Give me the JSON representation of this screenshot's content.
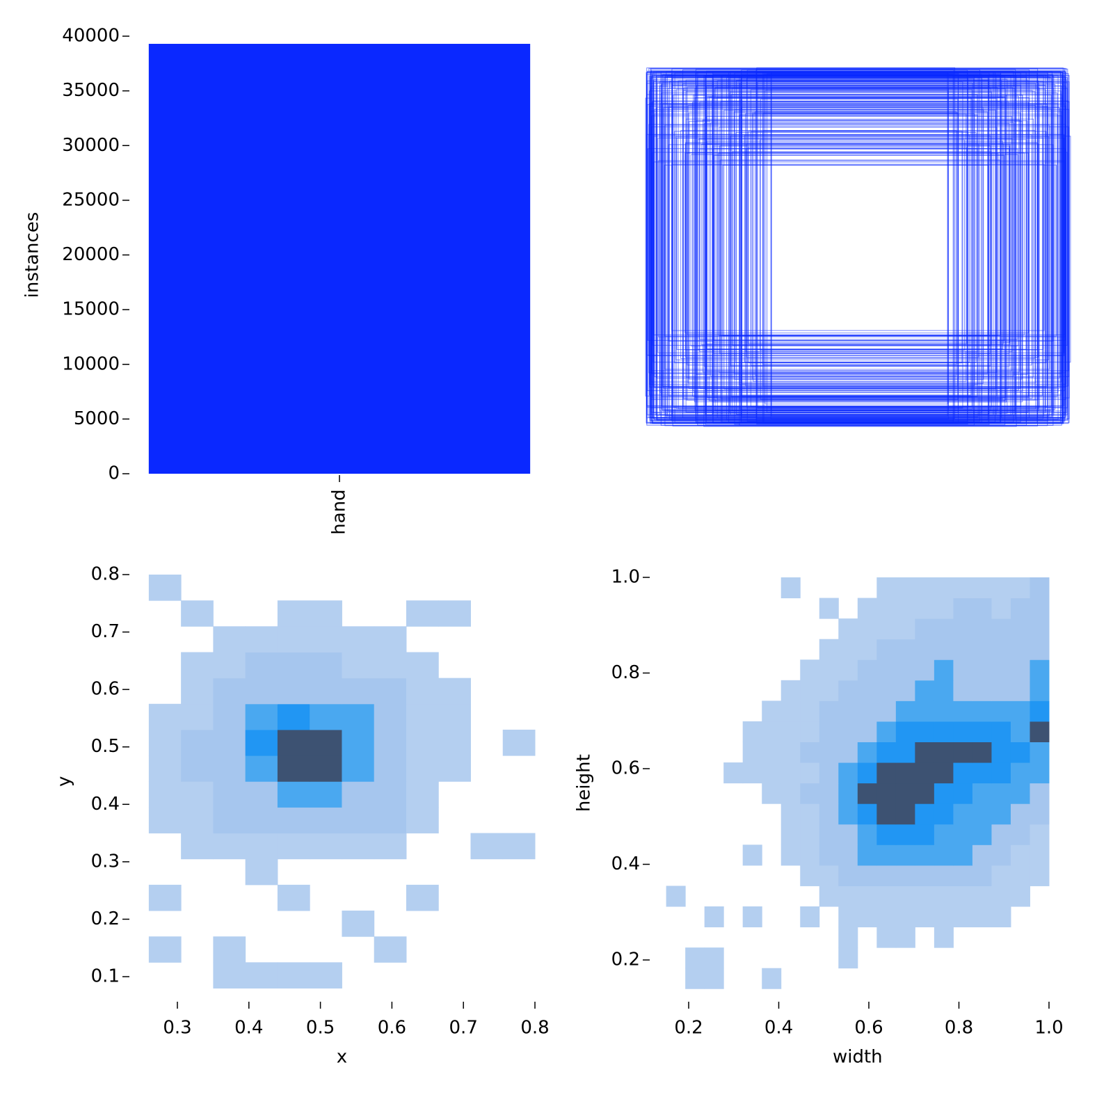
{
  "chart_data": [
    {
      "type": "bar",
      "ylabel": "instances",
      "categories": [
        "hand"
      ],
      "values": [
        39300
      ],
      "color": "#0a28ff",
      "ylim": [
        0,
        40000
      ],
      "yticks": [
        0,
        5000,
        10000,
        15000,
        20000,
        25000,
        30000,
        35000,
        40000
      ]
    },
    {
      "type": "hist2d",
      "xlabel": "x",
      "ylabel": "y",
      "xlim": [
        0.26,
        0.8
      ],
      "ylim": [
        0.08,
        0.8
      ],
      "xticks": [
        0.3,
        0.4,
        0.5,
        0.6,
        0.7,
        0.8
      ],
      "yticks": [
        0.1,
        0.2,
        0.3,
        0.4,
        0.5,
        0.6,
        0.7,
        0.8
      ],
      "colors": [
        "#b4cff0",
        "#a6c6ee",
        "#4aa8f0",
        "#2196f3",
        "#3d5272"
      ],
      "xbins": [
        0.26,
        0.305,
        0.35,
        0.395,
        0.44,
        0.485,
        0.53,
        0.575,
        0.62,
        0.665,
        0.71,
        0.755,
        0.8
      ],
      "ybins": [
        0.08,
        0.125,
        0.17,
        0.215,
        0.26,
        0.305,
        0.35,
        0.395,
        0.44,
        0.485,
        0.53,
        0.575,
        0.62,
        0.665,
        0.71,
        0.755,
        0.8
      ],
      "counts": [
        [
          0,
          0,
          1,
          1,
          1,
          1,
          0,
          0,
          0,
          0,
          0,
          0
        ],
        [
          1,
          0,
          1,
          0,
          0,
          0,
          0,
          1,
          0,
          0,
          0,
          0
        ],
        [
          0,
          0,
          0,
          0,
          0,
          0,
          1,
          0,
          0,
          0,
          0,
          0
        ],
        [
          1,
          0,
          0,
          0,
          1,
          0,
          0,
          0,
          1,
          0,
          0,
          0
        ],
        [
          0,
          0,
          0,
          1,
          0,
          0,
          0,
          0,
          0,
          0,
          0,
          0
        ],
        [
          0,
          1,
          1,
          1,
          1,
          1,
          1,
          1,
          0,
          0,
          1,
          1
        ],
        [
          1,
          1,
          2,
          2,
          2,
          2,
          2,
          2,
          1,
          0,
          0,
          0
        ],
        [
          1,
          1,
          2,
          2,
          3,
          3,
          2,
          2,
          1,
          0,
          0,
          0
        ],
        [
          1,
          2,
          2,
          3,
          5,
          5,
          3,
          2,
          1,
          1,
          0,
          0
        ],
        [
          1,
          2,
          2,
          4,
          5,
          5,
          3,
          2,
          1,
          1,
          0,
          1
        ],
        [
          1,
          1,
          2,
          3,
          4,
          3,
          3,
          2,
          1,
          1,
          0,
          0
        ],
        [
          0,
          1,
          2,
          2,
          2,
          2,
          2,
          2,
          1,
          1,
          0,
          0
        ],
        [
          0,
          1,
          1,
          2,
          2,
          2,
          1,
          1,
          1,
          0,
          0,
          0
        ],
        [
          0,
          0,
          1,
          1,
          1,
          1,
          1,
          1,
          0,
          0,
          0,
          0
        ],
        [
          0,
          1,
          0,
          0,
          1,
          1,
          0,
          0,
          1,
          1,
          0,
          0
        ],
        [
          1,
          0,
          0,
          0,
          0,
          0,
          0,
          0,
          0,
          0,
          0,
          0
        ]
      ]
    },
    {
      "type": "hist2d",
      "xlabel": "width",
      "ylabel": "height",
      "xlim": [
        0.15,
        1.0
      ],
      "ylim": [
        0.14,
        1.0
      ],
      "xticks": [
        0.2,
        0.4,
        0.6,
        0.8,
        {
          "value": 1,
          "label": "1.0"
        }
      ],
      "yticks": [
        0.2,
        0.4,
        0.6,
        0.8,
        {
          "value": 1,
          "label": "1.0"
        }
      ],
      "colors": [
        "#b4cff0",
        "#a6c6ee",
        "#4aa8f0",
        "#2196f3",
        "#3d5272"
      ],
      "xbins": [
        0.15,
        0.1925,
        0.235,
        0.2775,
        0.32,
        0.3625,
        0.405,
        0.4475,
        0.49,
        0.5325,
        0.575,
        0.6175,
        0.66,
        0.7025,
        0.745,
        0.7875,
        0.83,
        0.8725,
        0.915,
        0.9575,
        1.0
      ],
      "ybins": [
        0.14,
        0.183,
        0.226,
        0.269,
        0.312,
        0.355,
        0.398,
        0.441,
        0.484,
        0.527,
        0.57,
        0.613,
        0.656,
        0.699,
        0.742,
        0.785,
        0.828,
        0.871,
        0.914,
        0.957,
        1.0
      ],
      "counts": [
        [
          0,
          1,
          1,
          0,
          0,
          1,
          0,
          0,
          0,
          0,
          0,
          0,
          0,
          0,
          0,
          0,
          0,
          0,
          0,
          0
        ],
        [
          0,
          1,
          1,
          0,
          0,
          0,
          0,
          0,
          0,
          1,
          0,
          0,
          0,
          0,
          0,
          0,
          0,
          0,
          0,
          0
        ],
        [
          0,
          0,
          0,
          0,
          0,
          0,
          0,
          0,
          0,
          1,
          0,
          1,
          1,
          0,
          1,
          0,
          0,
          0,
          0,
          0
        ],
        [
          0,
          0,
          1,
          0,
          1,
          0,
          0,
          1,
          0,
          1,
          1,
          1,
          1,
          1,
          1,
          1,
          1,
          1,
          0,
          0
        ],
        [
          1,
          0,
          0,
          0,
          0,
          0,
          0,
          0,
          1,
          1,
          1,
          1,
          1,
          1,
          1,
          1,
          1,
          1,
          1,
          0
        ],
        [
          0,
          0,
          0,
          0,
          0,
          0,
          0,
          1,
          1,
          2,
          2,
          2,
          2,
          2,
          2,
          2,
          2,
          1,
          1,
          1
        ],
        [
          0,
          0,
          0,
          0,
          1,
          0,
          1,
          1,
          2,
          2,
          3,
          3,
          3,
          3,
          3,
          3,
          2,
          2,
          1,
          1
        ],
        [
          0,
          0,
          0,
          0,
          0,
          0,
          1,
          1,
          2,
          2,
          3,
          4,
          4,
          4,
          3,
          3,
          3,
          2,
          2,
          1
        ],
        [
          0,
          0,
          0,
          0,
          0,
          0,
          1,
          1,
          2,
          3,
          4,
          5,
          5,
          4,
          4,
          3,
          3,
          3,
          2,
          2
        ],
        [
          0,
          0,
          0,
          0,
          0,
          1,
          1,
          2,
          2,
          3,
          5,
          5,
          5,
          5,
          4,
          4,
          3,
          3,
          3,
          2
        ],
        [
          0,
          0,
          0,
          1,
          1,
          1,
          1,
          1,
          2,
          3,
          4,
          5,
          5,
          5,
          5,
          4,
          4,
          4,
          3,
          3
        ],
        [
          0,
          0,
          0,
          0,
          1,
          1,
          1,
          2,
          2,
          2,
          3,
          4,
          4,
          5,
          5,
          5,
          5,
          4,
          4,
          3
        ],
        [
          0,
          0,
          0,
          0,
          1,
          1,
          1,
          1,
          2,
          2,
          2,
          3,
          4,
          4,
          4,
          4,
          4,
          4,
          3,
          5
        ],
        [
          0,
          0,
          0,
          0,
          0,
          1,
          1,
          1,
          2,
          2,
          2,
          2,
          3,
          3,
          3,
          3,
          3,
          3,
          3,
          4
        ],
        [
          0,
          0,
          0,
          0,
          0,
          0,
          1,
          1,
          1,
          2,
          2,
          2,
          2,
          3,
          3,
          2,
          2,
          2,
          2,
          3
        ],
        [
          0,
          0,
          0,
          0,
          0,
          0,
          0,
          1,
          1,
          1,
          2,
          2,
          2,
          2,
          3,
          2,
          2,
          2,
          2,
          3
        ],
        [
          0,
          0,
          0,
          0,
          0,
          0,
          0,
          0,
          1,
          1,
          1,
          2,
          2,
          2,
          2,
          2,
          2,
          2,
          2,
          2
        ],
        [
          0,
          0,
          0,
          0,
          0,
          0,
          0,
          0,
          0,
          1,
          1,
          1,
          1,
          2,
          2,
          2,
          2,
          2,
          2,
          2
        ],
        [
          0,
          0,
          0,
          0,
          0,
          0,
          0,
          0,
          1,
          0,
          1,
          1,
          1,
          1,
          1,
          2,
          2,
          1,
          2,
          2
        ],
        [
          0,
          0,
          0,
          0,
          0,
          0,
          1,
          0,
          0,
          0,
          0,
          1,
          1,
          1,
          1,
          1,
          1,
          1,
          1,
          2
        ]
      ]
    }
  ]
}
